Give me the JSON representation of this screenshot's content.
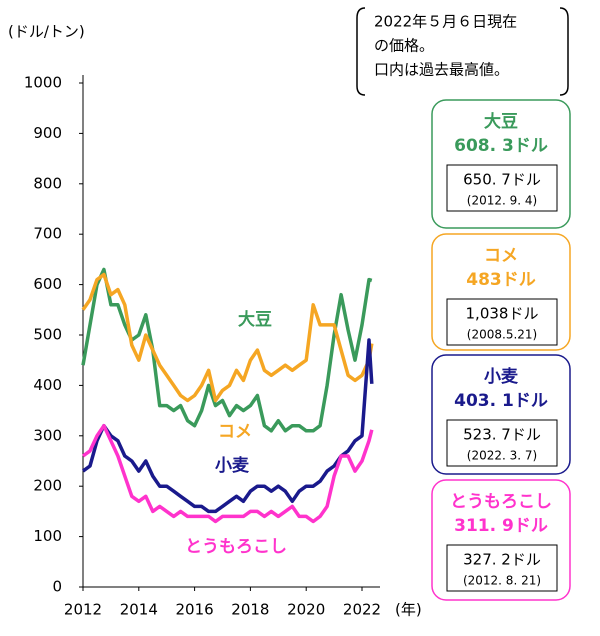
{
  "chart_data": {
    "type": "line",
    "y_label": "(ドル/トン)",
    "x_label": "(年)",
    "note": [
      "2022年５月６日現在",
      "の価格。",
      "口内は過去最高値。"
    ],
    "xlim": [
      2012,
      2022
    ],
    "xticks": [
      2012,
      2014,
      2016,
      2018,
      2020,
      2022
    ],
    "ylim": [
      0,
      1000
    ],
    "yticks": [
      0,
      100,
      200,
      300,
      400,
      500,
      600,
      700,
      800,
      900,
      1000
    ],
    "x": [
      2012,
      2012.25,
      2012.5,
      2012.75,
      2013,
      2013.25,
      2013.5,
      2013.75,
      2014,
      2014.25,
      2014.5,
      2014.75,
      2015,
      2015.25,
      2015.5,
      2015.75,
      2016,
      2016.25,
      2016.5,
      2016.75,
      2017,
      2017.25,
      2017.5,
      2017.75,
      2018,
      2018.25,
      2018.5,
      2018.75,
      2019,
      2019.25,
      2019.5,
      2019.75,
      2020,
      2020.25,
      2020.5,
      2020.75,
      2021,
      2021.25,
      2021.5,
      2021.75,
      2022,
      2022.25,
      2022.35
    ],
    "series": [
      {
        "name": "大豆",
        "color": "#3a9a5b",
        "price": "608. 3ドル",
        "record": "650. 7ドル",
        "record_date": "(2012. 9. 4)",
        "values": [
          440,
          520,
          600,
          630,
          560,
          560,
          520,
          490,
          500,
          540,
          470,
          360,
          360,
          350,
          360,
          330,
          320,
          350,
          400,
          360,
          370,
          340,
          360,
          350,
          360,
          380,
          320,
          310,
          330,
          310,
          320,
          320,
          310,
          310,
          320,
          400,
          500,
          580,
          510,
          450,
          520,
          610,
          608.3
        ]
      },
      {
        "name": "コメ",
        "color": "#f5a623",
        "price": "483ドル",
        "record": "1,038ドル",
        "record_date": "(2008.5.21)",
        "values": [
          550,
          570,
          610,
          620,
          580,
          590,
          560,
          480,
          450,
          500,
          470,
          440,
          420,
          400,
          380,
          370,
          380,
          400,
          430,
          370,
          390,
          400,
          430,
          410,
          450,
          470,
          430,
          420,
          430,
          440,
          430,
          440,
          450,
          560,
          520,
          520,
          520,
          470,
          420,
          410,
          420,
          450,
          483
        ]
      },
      {
        "name": "小麦",
        "color": "#1a1a8c",
        "price": "403. 1ドル",
        "record": "523. 7ドル",
        "record_date": "(2022. 3. 7)",
        "values": [
          230,
          240,
          290,
          320,
          300,
          290,
          260,
          250,
          230,
          250,
          220,
          200,
          200,
          190,
          180,
          170,
          160,
          160,
          150,
          150,
          160,
          170,
          180,
          170,
          190,
          200,
          200,
          190,
          200,
          190,
          170,
          190,
          200,
          200,
          210,
          230,
          240,
          260,
          270,
          290,
          300,
          490,
          403.1
        ]
      },
      {
        "name": "とうもろこし",
        "color": "#ff33cc",
        "price": "311. 9ドル",
        "record": "327. 2ドル",
        "record_date": "(2012. 8. 21)",
        "values": [
          260,
          270,
          300,
          320,
          290,
          260,
          220,
          180,
          170,
          180,
          150,
          160,
          150,
          140,
          150,
          140,
          140,
          140,
          140,
          130,
          140,
          140,
          140,
          140,
          150,
          150,
          140,
          150,
          140,
          150,
          160,
          140,
          140,
          130,
          140,
          160,
          220,
          260,
          260,
          230,
          250,
          290,
          311.9
        ]
      }
    ]
  }
}
